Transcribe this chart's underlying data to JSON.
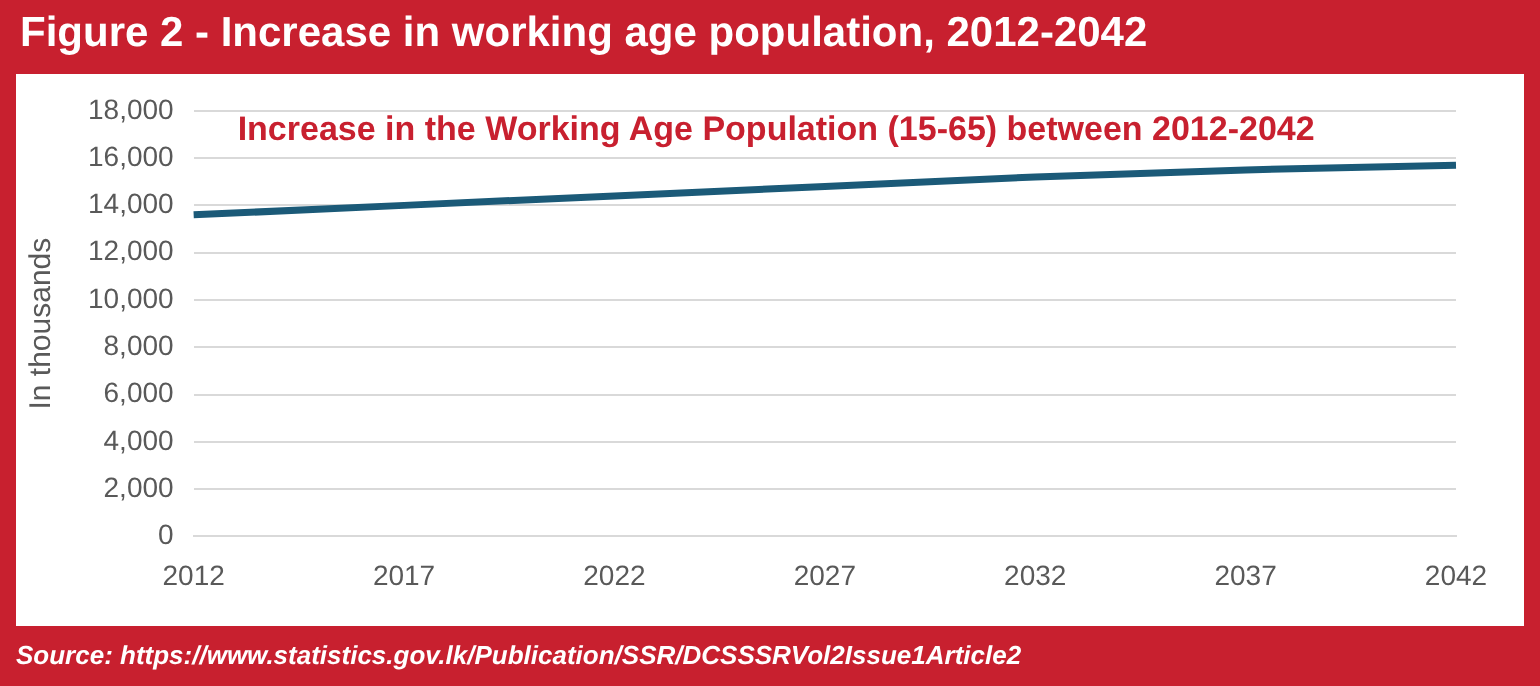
{
  "chart_data": {
    "type": "line",
    "title": "Figure 2 - Increase in working age population, 2012-2042",
    "subtitle": "Increase in the Working Age Population (15-65) between 2012-2042",
    "ylabel": "In thousands",
    "annotations": [
      "Source: https://www.statistics.gov.lk/Publication/SSR/DCSSSRVol2Issue1Article2"
    ],
    "categories": [
      "2012",
      "2017",
      "2022",
      "2027",
      "2032",
      "2037",
      "2042"
    ],
    "series": [
      {
        "color": "#1b5a78",
        "values": [
          13600,
          14000,
          14400,
          14800,
          15200,
          15500,
          15700
        ]
      }
    ],
    "ylim": [
      0,
      18000
    ],
    "yticks": [
      0,
      {
        "value": 2000,
        "label": "2,000"
      },
      {
        "value": 4000,
        "label": "4,000"
      },
      {
        "value": 6000,
        "label": "6,000"
      },
      {
        "value": 8000,
        "label": "8,000"
      },
      {
        "value": 10000,
        "label": "10,000"
      },
      {
        "value": 12000,
        "label": "12,000"
      },
      {
        "value": 14000,
        "label": "14,000"
      },
      {
        "value": 16000,
        "label": "16,000"
      },
      {
        "value": 18000,
        "label": "18,000"
      }
    ],
    "grid": "y",
    "legend": false,
    "marker": "none",
    "line_style": "solid"
  }
}
